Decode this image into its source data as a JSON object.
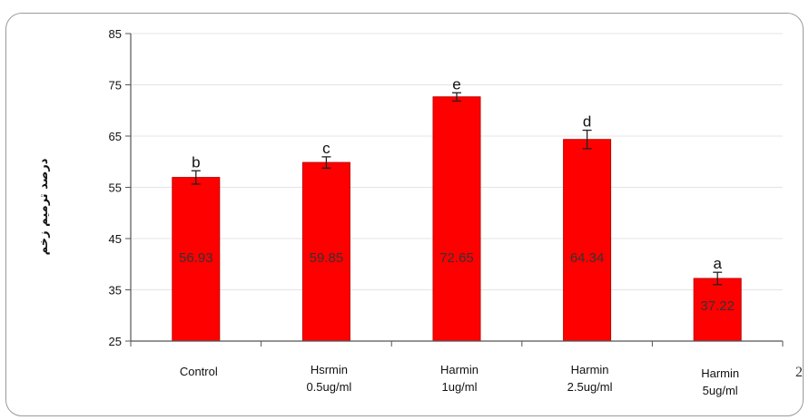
{
  "chart_data": {
    "type": "bar",
    "title": "",
    "xlabel": "",
    "ylabel": "درصد ترمیم زخم",
    "ylim": [
      25,
      85
    ],
    "yticks": [
      25,
      35,
      45,
      55,
      65,
      75,
      85
    ],
    "grid": true,
    "categories": [
      [
        "Control"
      ],
      [
        "Hsrmin",
        "0.5ug/ml"
      ],
      [
        "Harmin",
        "1ug/ml"
      ],
      [
        "Harmin",
        "2.5ug/ml"
      ],
      [
        "Harmin",
        "5ug/ml"
      ]
    ],
    "values": [
      56.93,
      59.85,
      72.65,
      64.34,
      37.22
    ],
    "value_labels": [
      "56.93",
      "59.85",
      "72.65",
      "64.34",
      "37.22"
    ],
    "errors": [
      1.3,
      1.1,
      0.8,
      1.8,
      1.2
    ],
    "significance": [
      "b",
      "c",
      "e",
      "d",
      "a"
    ],
    "colors": {
      "bar": "#ff0000",
      "bar_edge": "#c00000",
      "axis": "#555555",
      "grid": "#e4e4e4"
    }
  },
  "page_number": "2"
}
